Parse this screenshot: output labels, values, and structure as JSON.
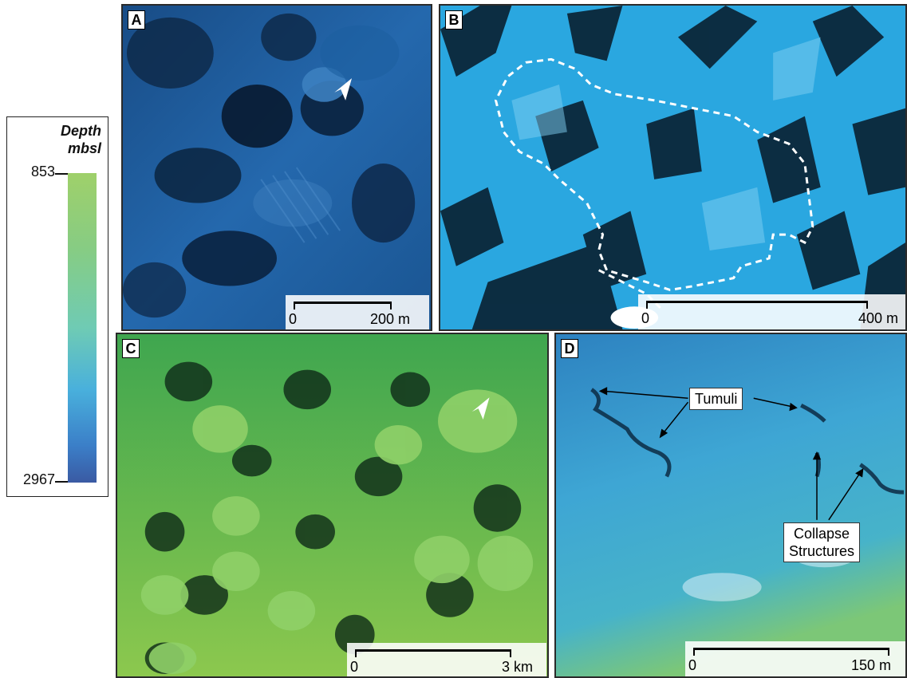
{
  "legend": {
    "title_line1": "Depth",
    "title_line2": "mbsl",
    "top_value": "853",
    "bottom_value": "2967"
  },
  "panels": {
    "a": {
      "letter": "A",
      "scale_start": "0",
      "scale_end": "200 m"
    },
    "b": {
      "letter": "B",
      "scale_start": "0",
      "scale_end": "400 m"
    },
    "c": {
      "letter": "C",
      "scale_start": "0",
      "scale_end": "3 km"
    },
    "d": {
      "letter": "D",
      "scale_start": "0",
      "scale_end": "150 m",
      "label_tumuli": "Tumuli",
      "label_collapse_1": "Collapse",
      "label_collapse_2": "Structures"
    }
  },
  "colors": {
    "panel_a": "#1e5fa0",
    "panel_b": "#2aa8e2",
    "panel_c": "#7bc554",
    "panel_d": "#3ea7d2"
  }
}
